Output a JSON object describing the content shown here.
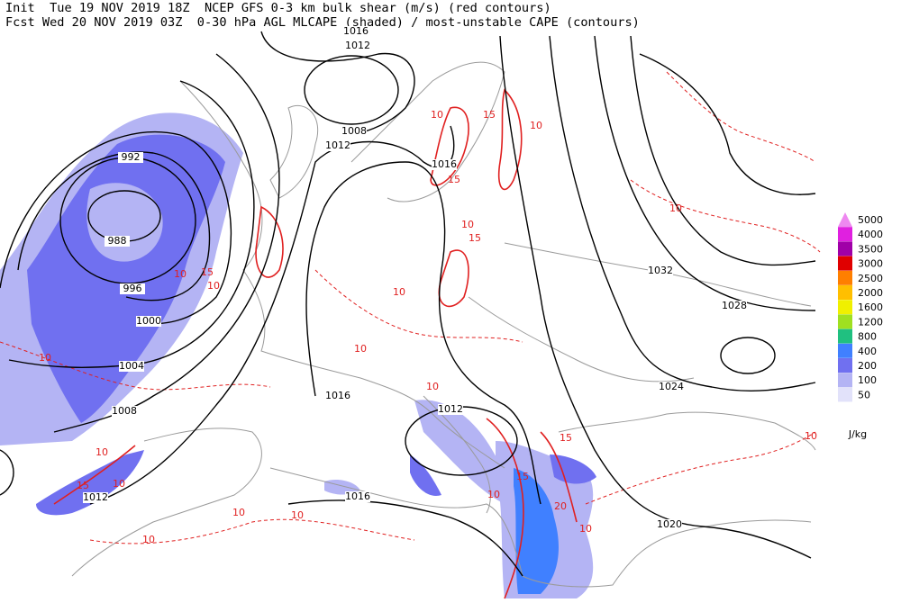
{
  "header": {
    "line1": "Init  Tue 19 NOV 2019 18Z  NCEP GFS 0-3 km bulk shear (m/s) (red contours)",
    "line2": "Fcst Wed 20 NOV 2019 03Z  0-30 hPa AGL MLCAPE (shaded) / most-unstable CAPE (contours)"
  },
  "legend": {
    "unit": "J/kg",
    "entries": [
      {
        "label": 5000,
        "color": "#ee88f0"
      },
      {
        "label": 4000,
        "color": "#e020e0"
      },
      {
        "label": 3500,
        "color": "#a000a8"
      },
      {
        "label": 3000,
        "color": "#e00000"
      },
      {
        "label": 2500,
        "color": "#ff7f00"
      },
      {
        "label": 2000,
        "color": "#ffbf00"
      },
      {
        "label": 1600,
        "color": "#f0f000"
      },
      {
        "label": 1200,
        "color": "#a0e020"
      },
      {
        "label": 800,
        "color": "#20c080"
      },
      {
        "label": 400,
        "color": "#4080ff"
      },
      {
        "label": 200,
        "color": "#7070f0"
      },
      {
        "label": 100,
        "color": "#b4b4f4"
      },
      {
        "label": 50,
        "color": "#e2e2fa"
      }
    ]
  },
  "isobar_labels": [
    1016,
    1012,
    1008,
    1012,
    1016,
    992,
    988,
    996,
    1000,
    1004,
    1008,
    1012,
    1016,
    1012,
    1016,
    1024,
    1028,
    1032,
    1020
  ],
  "shear_labels": [
    10,
    15,
    10,
    15,
    10,
    15,
    10,
    10,
    10,
    10,
    15,
    10,
    10,
    10,
    15,
    10,
    10,
    10,
    10,
    10,
    15,
    20,
    10,
    15,
    10,
    10
  ]
}
